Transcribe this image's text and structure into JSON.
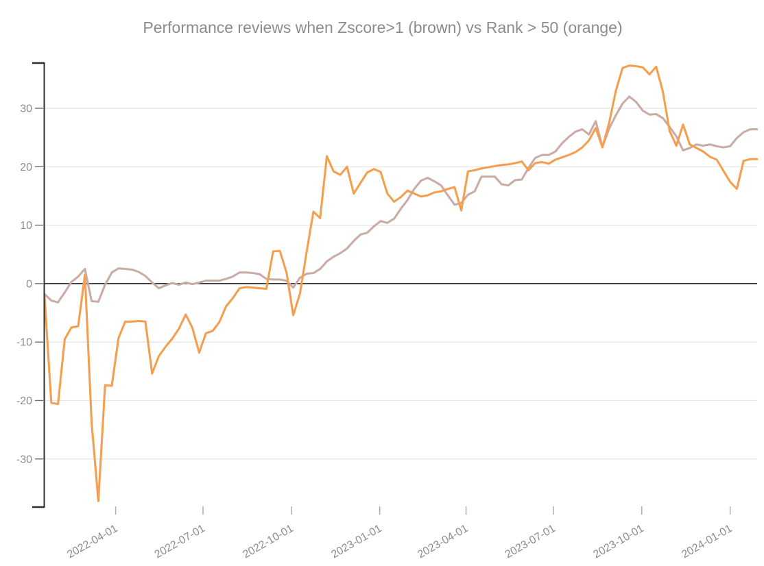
{
  "title": "Performance reviews when Zscore>1 (brown) vs Rank > 50 (orange)",
  "chart_data": {
    "type": "line",
    "title": "Performance reviews when Zscore>1 (brown) vs Rank > 50 (orange)",
    "legend": "none",
    "x_axis": {
      "tick_labels": [
        "2022-04-01",
        "2022-07-01",
        "2022-10-01",
        "2023-01-01",
        "2023-04-01",
        "2023-07-01",
        "2023-10-01",
        "2024-01-01"
      ],
      "start_date": "2022-01-17",
      "end_date": "2024-01-29",
      "sample_interval_days": 7,
      "label_rotation_deg": -30
    },
    "y_axis": {
      "ticks": [
        30,
        20,
        10,
        0,
        -10,
        -20,
        -30
      ],
      "ylim": [
        -38.35,
        37.85
      ],
      "grid": "horizontal-light",
      "zero_line": "black"
    },
    "series": [
      {
        "name": "Zscore>1",
        "color_name": "brown",
        "color": "#C9ACA6",
        "values": [
          -1.8,
          -2.9,
          -3.2,
          -1.5,
          0.3,
          1.2,
          2.5,
          -3.0,
          -3.1,
          -0.2,
          1.9,
          2.6,
          2.5,
          2.4,
          2.0,
          1.3,
          0.2,
          -0.8,
          -0.3,
          0.1,
          -0.2,
          0.2,
          -0.1,
          0.2,
          0.5,
          0.5,
          0.5,
          0.8,
          1.2,
          1.9,
          1.9,
          1.8,
          1.6,
          0.8,
          0.7,
          0.7,
          0.5,
          -0.7,
          1.0,
          1.7,
          1.8,
          2.5,
          3.8,
          4.6,
          5.2,
          6.0,
          7.3,
          8.4,
          8.7,
          9.8,
          10.7,
          10.4,
          11.1,
          12.8,
          14.3,
          16.2,
          17.6,
          18.1,
          17.5,
          16.8,
          15.1,
          13.5,
          13.8,
          15.2,
          15.8,
          18.3,
          18.3,
          18.3,
          17.0,
          16.8,
          17.7,
          17.8,
          19.8,
          21.5,
          22.0,
          22.0,
          22.6,
          24.0,
          25.1,
          26.0,
          26.4,
          25.5,
          27.8,
          23.4,
          26.5,
          28.8,
          30.8,
          32.0,
          31.1,
          29.6,
          28.9,
          29.0,
          28.3,
          26.8,
          25.2,
          22.8,
          23.2,
          23.8,
          23.6,
          23.8,
          23.5,
          23.3,
          23.5,
          24.9,
          25.9,
          26.4,
          26.4
        ]
      },
      {
        "name": "Rank > 50",
        "color_name": "orange",
        "color": "#F49F50",
        "values": [
          -2.3,
          -20.4,
          -20.6,
          -9.5,
          -7.5,
          -7.3,
          1.5,
          -23.8,
          -37.2,
          -17.4,
          -17.5,
          -9.3,
          -6.5,
          -6.5,
          -6.4,
          -6.5,
          -15.4,
          -12.4,
          -10.8,
          -9.4,
          -7.7,
          -5.3,
          -7.6,
          -11.8,
          -8.5,
          -8.1,
          -6.6,
          -3.9,
          -2.5,
          -0.8,
          -0.6,
          -0.7,
          -0.8,
          -0.9,
          5.5,
          5.6,
          1.9,
          -5.4,
          -1.7,
          5.5,
          12.3,
          11.2,
          21.8,
          19.2,
          18.6,
          20.0,
          15.4,
          17.2,
          19.0,
          19.6,
          19.1,
          15.4,
          14.0,
          14.8,
          15.9,
          15.4,
          14.9,
          15.1,
          15.6,
          15.8,
          16.2,
          16.5,
          12.5,
          19.2,
          19.4,
          19.7,
          19.9,
          20.1,
          20.3,
          20.4,
          20.6,
          20.9,
          19.4,
          20.6,
          20.8,
          20.5,
          21.2,
          21.6,
          22.0,
          22.5,
          23.3,
          24.5,
          26.6,
          23.3,
          27.5,
          33.0,
          36.9,
          37.3,
          37.2,
          37.0,
          35.8,
          37.1,
          32.8,
          26.1,
          23.6,
          27.2,
          23.8,
          23.2,
          22.6,
          21.7,
          21.2,
          19.3,
          17.4,
          16.2,
          21.0,
          21.3,
          21.3
        ]
      }
    ]
  },
  "colors": {
    "background": "#FFFFFF",
    "title_text": "#8C8C8C",
    "tick_text": "#8C8C8C",
    "grid": "#E8E6E4",
    "zero_line": "#1A1A1A",
    "spine": "#2E2E2E",
    "y_tick_mark": "#6E6E6E",
    "x_tick_mark": "#ADADAD"
  }
}
